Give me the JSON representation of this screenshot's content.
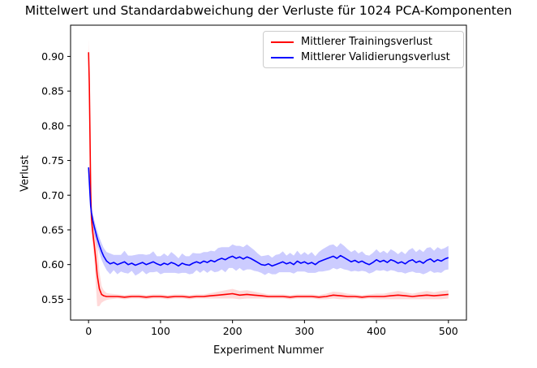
{
  "chart_data": {
    "type": "line",
    "title": "Mittelwert und Standardabweichung der Verluste für 1024 PCA-Komponenten",
    "xlabel": "Experiment Nummer",
    "ylabel": "Verlust",
    "xlim": [
      -25,
      525
    ],
    "ylim": [
      0.52,
      0.945
    ],
    "xticks": [
      0,
      100,
      200,
      300,
      400,
      500
    ],
    "yticks": [
      0.55,
      0.6,
      0.65,
      0.7,
      0.75,
      0.8,
      0.85,
      0.9
    ],
    "grid": false,
    "legend_position": "upper right",
    "colors": {
      "train": "#ff0000",
      "val": "#0000ff",
      "spine": "#000000",
      "legend_border": "#cccccc"
    },
    "series": [
      {
        "id": "train",
        "name": "Mittlerer Trainingsverlust",
        "color": "#ff0000",
        "band_opacity": 0.15,
        "x": [
          0,
          1,
          2,
          3,
          4,
          5,
          6,
          8,
          10,
          12,
          15,
          18,
          21,
          25,
          30,
          40,
          50,
          60,
          70,
          80,
          90,
          100,
          110,
          120,
          130,
          140,
          150,
          160,
          170,
          180,
          190,
          200,
          210,
          220,
          230,
          240,
          250,
          260,
          270,
          280,
          290,
          300,
          310,
          320,
          330,
          340,
          350,
          360,
          370,
          380,
          390,
          400,
          410,
          420,
          430,
          440,
          450,
          460,
          470,
          480,
          490,
          500
        ],
        "mean": [
          0.906,
          0.86,
          0.78,
          0.705,
          0.668,
          0.655,
          0.645,
          0.627,
          0.607,
          0.585,
          0.565,
          0.557,
          0.555,
          0.554,
          0.554,
          0.554,
          0.553,
          0.554,
          0.554,
          0.553,
          0.554,
          0.554,
          0.553,
          0.554,
          0.554,
          0.553,
          0.554,
          0.554,
          0.555,
          0.556,
          0.557,
          0.558,
          0.556,
          0.557,
          0.556,
          0.555,
          0.554,
          0.554,
          0.554,
          0.553,
          0.554,
          0.554,
          0.554,
          0.553,
          0.554,
          0.556,
          0.555,
          0.554,
          0.554,
          0.553,
          0.554,
          0.554,
          0.554,
          0.555,
          0.556,
          0.555,
          0.554,
          0.555,
          0.556,
          0.555,
          0.556,
          0.557
        ],
        "std": [
          0.019,
          0.02,
          0.021,
          0.021,
          0.02,
          0.019,
          0.018,
          0.02,
          0.035,
          0.045,
          0.025,
          0.012,
          0.008,
          0.005,
          0.004,
          0.003,
          0.003,
          0.003,
          0.003,
          0.003,
          0.003,
          0.003,
          0.003,
          0.003,
          0.003,
          0.003,
          0.003,
          0.003,
          0.004,
          0.005,
          0.006,
          0.007,
          0.006,
          0.006,
          0.005,
          0.004,
          0.003,
          0.003,
          0.003,
          0.003,
          0.003,
          0.003,
          0.003,
          0.003,
          0.004,
          0.005,
          0.005,
          0.004,
          0.003,
          0.003,
          0.003,
          0.004,
          0.004,
          0.005,
          0.006,
          0.005,
          0.004,
          0.005,
          0.006,
          0.005,
          0.006,
          0.006
        ]
      },
      {
        "id": "val",
        "name": "Mittlerer Validierungsverlust",
        "color": "#0000ff",
        "band_opacity": 0.2,
        "x": [
          0,
          1,
          2,
          3,
          4,
          5,
          6,
          8,
          10,
          12,
          15,
          18,
          21,
          25,
          30,
          35,
          40,
          45,
          50,
          55,
          60,
          65,
          70,
          75,
          80,
          85,
          90,
          95,
          100,
          105,
          110,
          115,
          120,
          125,
          130,
          135,
          140,
          145,
          150,
          155,
          160,
          165,
          170,
          175,
          180,
          185,
          190,
          195,
          200,
          205,
          210,
          215,
          220,
          225,
          230,
          235,
          240,
          245,
          250,
          255,
          260,
          265,
          270,
          275,
          280,
          285,
          290,
          295,
          300,
          305,
          310,
          315,
          320,
          325,
          330,
          335,
          340,
          345,
          350,
          355,
          360,
          365,
          370,
          375,
          380,
          385,
          390,
          395,
          400,
          405,
          410,
          415,
          420,
          425,
          430,
          435,
          440,
          445,
          450,
          455,
          460,
          465,
          470,
          475,
          480,
          485,
          490,
          495,
          500
        ],
        "mean": [
          0.74,
          0.72,
          0.7,
          0.684,
          0.675,
          0.669,
          0.663,
          0.654,
          0.646,
          0.638,
          0.628,
          0.619,
          0.612,
          0.605,
          0.601,
          0.603,
          0.6,
          0.602,
          0.604,
          0.6,
          0.602,
          0.599,
          0.601,
          0.603,
          0.6,
          0.602,
          0.604,
          0.601,
          0.599,
          0.602,
          0.6,
          0.603,
          0.601,
          0.598,
          0.602,
          0.6,
          0.599,
          0.602,
          0.604,
          0.602,
          0.605,
          0.603,
          0.606,
          0.604,
          0.607,
          0.609,
          0.607,
          0.61,
          0.612,
          0.609,
          0.611,
          0.608,
          0.611,
          0.609,
          0.606,
          0.603,
          0.6,
          0.599,
          0.601,
          0.598,
          0.6,
          0.602,
          0.604,
          0.601,
          0.603,
          0.6,
          0.605,
          0.602,
          0.604,
          0.601,
          0.603,
          0.6,
          0.604,
          0.606,
          0.608,
          0.61,
          0.612,
          0.609,
          0.613,
          0.61,
          0.607,
          0.604,
          0.606,
          0.603,
          0.605,
          0.602,
          0.6,
          0.603,
          0.607,
          0.604,
          0.606,
          0.603,
          0.607,
          0.605,
          0.602,
          0.604,
          0.601,
          0.605,
          0.607,
          0.603,
          0.605,
          0.602,
          0.606,
          0.608,
          0.604,
          0.607,
          0.605,
          0.608,
          0.61
        ],
        "std": [
          0.004,
          0.005,
          0.006,
          0.007,
          0.008,
          0.008,
          0.009,
          0.01,
          0.01,
          0.011,
          0.011,
          0.012,
          0.012,
          0.013,
          0.015,
          0.011,
          0.014,
          0.012,
          0.016,
          0.013,
          0.011,
          0.015,
          0.014,
          0.012,
          0.014,
          0.013,
          0.015,
          0.011,
          0.013,
          0.014,
          0.012,
          0.015,
          0.013,
          0.011,
          0.014,
          0.012,
          0.013,
          0.015,
          0.012,
          0.014,
          0.013,
          0.015,
          0.014,
          0.015,
          0.017,
          0.016,
          0.018,
          0.015,
          0.017,
          0.018,
          0.016,
          0.017,
          0.018,
          0.016,
          0.015,
          0.013,
          0.012,
          0.014,
          0.013,
          0.012,
          0.014,
          0.013,
          0.015,
          0.012,
          0.014,
          0.013,
          0.015,
          0.012,
          0.014,
          0.013,
          0.015,
          0.012,
          0.014,
          0.016,
          0.017,
          0.018,
          0.017,
          0.016,
          0.018,
          0.017,
          0.015,
          0.014,
          0.015,
          0.013,
          0.014,
          0.012,
          0.013,
          0.014,
          0.015,
          0.013,
          0.014,
          0.013,
          0.015,
          0.014,
          0.013,
          0.015,
          0.014,
          0.016,
          0.017,
          0.015,
          0.017,
          0.016,
          0.018,
          0.017,
          0.016,
          0.018,
          0.017,
          0.016,
          0.017
        ]
      }
    ]
  }
}
